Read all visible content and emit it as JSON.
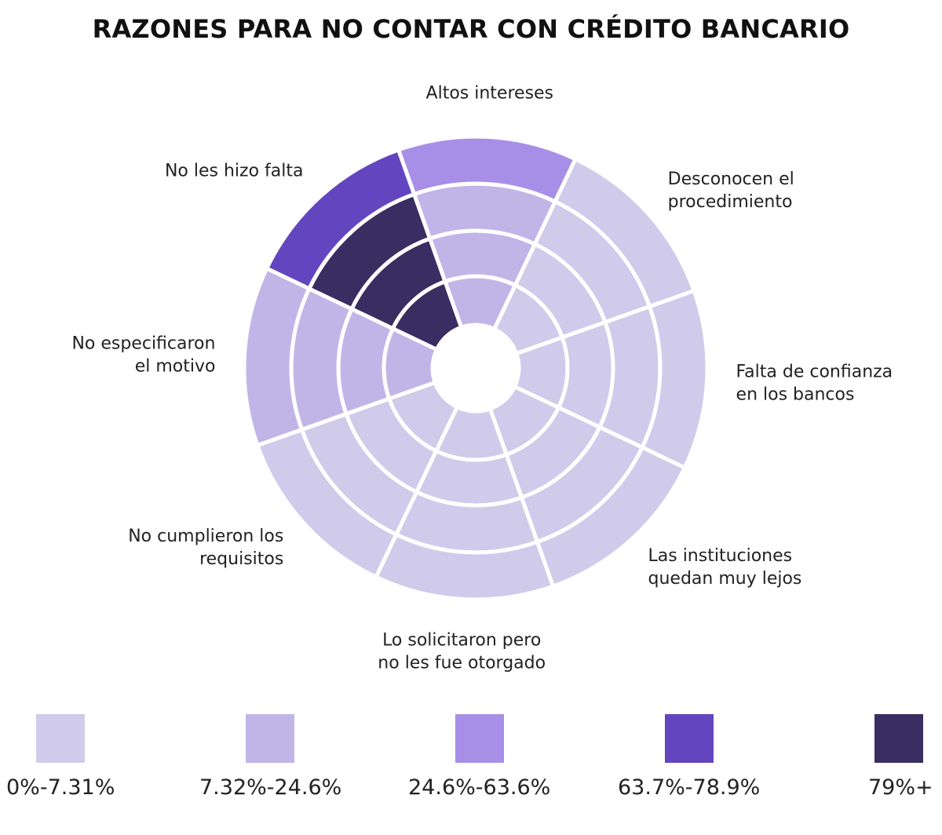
{
  "title": "RAZONES PARA NO CONTAR CON CRÉDITO BANCARIO",
  "chart_data": {
    "type": "radial-heatmap",
    "title": "RAZONES PARA NO CONTAR CON CRÉDITO BANCARIO",
    "categories": [
      {
        "label": [
          "Altos intereses"
        ]
      },
      {
        "label": [
          "Desconocen el",
          "procedimiento"
        ]
      },
      {
        "label": [
          "Falta de confianza",
          "en los bancos"
        ]
      },
      {
        "label": [
          "Las instituciones",
          "quedan muy lejos"
        ]
      },
      {
        "label": [
          "Lo solicitaron pero",
          "no les fue otorgado"
        ]
      },
      {
        "label": [
          "No cumplieron los",
          "requisitos"
        ]
      },
      {
        "label": [
          "No especificaron",
          "el motivo"
        ]
      },
      {
        "label": [
          "No les hizo falta"
        ]
      }
    ],
    "rings": 4,
    "color_bins": [
      {
        "range": "0%-7.31%",
        "color": "#d0cbeb"
      },
      {
        "range": "7.32%-24.6%",
        "color": "#c1b5e8"
      },
      {
        "range": "24.6%-63.6%",
        "color": "#a78fe8"
      },
      {
        "range": "63.7%-78.9%",
        "color": "#6346bf"
      },
      {
        "range": "79%+",
        "color": "#3a2d62"
      }
    ],
    "cells_bin_index": [
      [
        1,
        1,
        1,
        2
      ],
      [
        0,
        0,
        0,
        0
      ],
      [
        0,
        0,
        0,
        0
      ],
      [
        0,
        0,
        0,
        0
      ],
      [
        0,
        0,
        0,
        0
      ],
      [
        0,
        0,
        0,
        0
      ],
      [
        1,
        1,
        1,
        1
      ],
      [
        4,
        4,
        4,
        3
      ]
    ]
  },
  "legend": [
    {
      "label": "0%-7.31%",
      "color": "#d0cbeb"
    },
    {
      "label": "7.32%-24.6%",
      "color": "#c1b5e8"
    },
    {
      "label": "24.6%-63.6%",
      "color": "#a78fe8"
    },
    {
      "label": "63.7%-78.9%",
      "color": "#6346bf"
    },
    {
      "label": "79%+",
      "color": "#3a2d62"
    }
  ]
}
